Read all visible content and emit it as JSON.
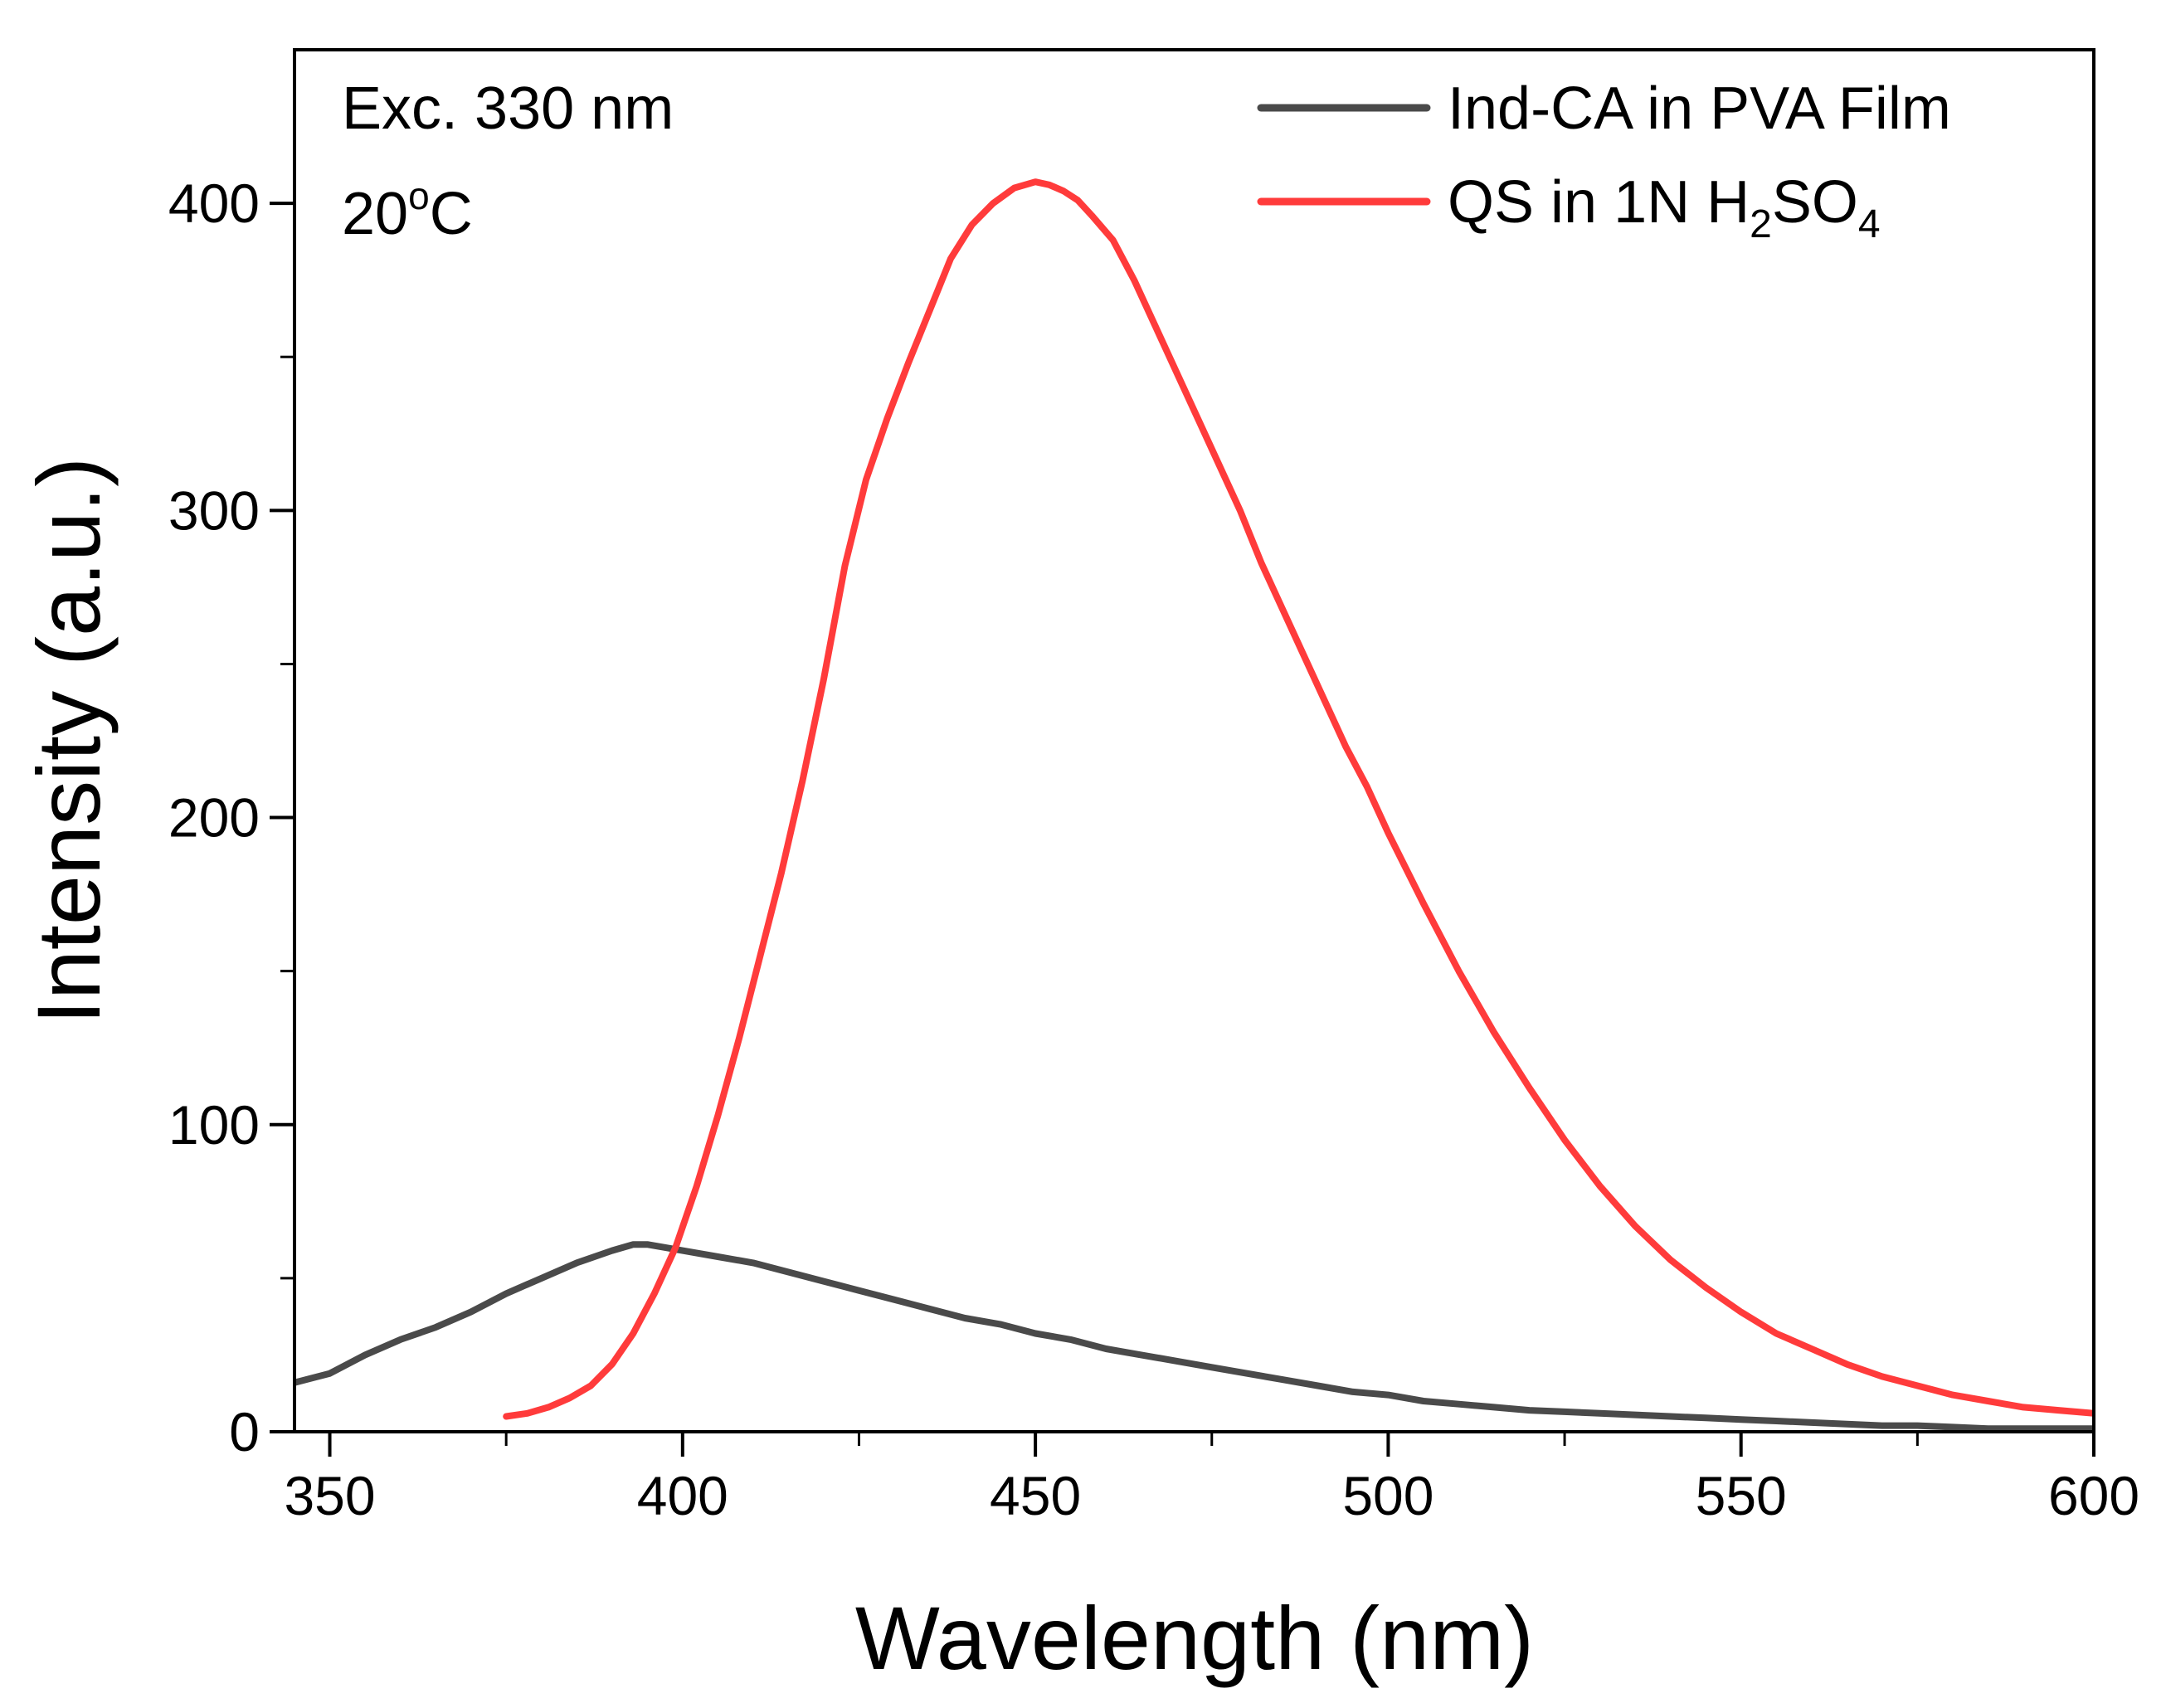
{
  "chart_data": {
    "type": "line",
    "title": "",
    "xlabel": "Wavelength (nm)",
    "ylabel": "Intensity (a.u.)",
    "xlim": [
      345,
      600
    ],
    "ylim": [
      0,
      450
    ],
    "grid": false,
    "legend_position": "top-right",
    "x_ticks": [
      350,
      400,
      450,
      500,
      550,
      600
    ],
    "x_tick_labels": [
      "350",
      "400",
      "450",
      "500",
      "550",
      "600"
    ],
    "x_minor_ticks": [
      375,
      425,
      475,
      525,
      575
    ],
    "y_ticks": [
      0,
      100,
      200,
      300,
      400
    ],
    "y_tick_labels": [
      "0",
      "100",
      "200",
      "300",
      "400"
    ],
    "y_minor_ticks": [
      50,
      150,
      250,
      350
    ],
    "annotations": [
      {
        "text": "Exc. 330 nm"
      },
      {
        "text": "20",
        "superscript": "o",
        "suffix": "C"
      }
    ],
    "series": [
      {
        "name": "Ind-CA in PVA Film",
        "color": "#4a4a4a",
        "x": [
          345,
          350,
          355,
          360,
          365,
          370,
          375,
          380,
          385,
          390,
          393,
          395,
          400,
          405,
          410,
          415,
          420,
          425,
          430,
          435,
          440,
          445,
          450,
          455,
          460,
          465,
          470,
          475,
          480,
          485,
          490,
          495,
          500,
          505,
          510,
          515,
          520,
          525,
          530,
          535,
          540,
          545,
          550,
          555,
          560,
          565,
          570,
          575,
          580,
          585,
          590,
          595,
          600
        ],
        "y": [
          16,
          19,
          25,
          30,
          34,
          39,
          45,
          50,
          55,
          59,
          61,
          61,
          59,
          57,
          55,
          52,
          49,
          46,
          43,
          40,
          37,
          35,
          32,
          30,
          27,
          25,
          23,
          21,
          19,
          17,
          15,
          13,
          12,
          10,
          9,
          8,
          7,
          6.5,
          6,
          5.5,
          5,
          4.5,
          4,
          3.5,
          3,
          2.5,
          2,
          2,
          1.5,
          1,
          1,
          1,
          1
        ]
      },
      {
        "name": "QS in 1N H2SO4",
        "color": "#ff3b3b",
        "x": [
          375,
          378,
          381,
          384,
          387,
          390,
          393,
          396,
          399,
          402,
          405,
          408,
          411,
          414,
          417,
          420,
          423,
          426,
          429,
          432,
          435,
          438,
          441,
          444,
          447,
          450,
          452,
          454,
          456,
          458,
          461,
          464,
          467,
          470,
          473,
          476,
          479,
          482,
          485,
          488,
          491,
          494,
          497,
          500,
          505,
          510,
          515,
          520,
          525,
          530,
          535,
          540,
          545,
          550,
          555,
          560,
          565,
          570,
          575,
          580,
          585,
          590,
          595,
          600
        ],
        "y": [
          5,
          6,
          8,
          11,
          15,
          22,
          32,
          45,
          60,
          80,
          103,
          128,
          155,
          182,
          212,
          245,
          282,
          310,
          330,
          348,
          365,
          382,
          393,
          400,
          405,
          407,
          406,
          404,
          401,
          396,
          388,
          375,
          360,
          345,
          330,
          315,
          300,
          283,
          268,
          253,
          238,
          223,
          210,
          195,
          172,
          150,
          130,
          112,
          95,
          80,
          67,
          56,
          47,
          39,
          32,
          27,
          22,
          18,
          15,
          12,
          10,
          8,
          7,
          6
        ]
      }
    ]
  },
  "legend": {
    "entry_1_label": "Ind-CA in PVA Film",
    "entry_2_prefix": "QS in 1N H",
    "entry_2_sub1": "2",
    "entry_2_mid": "SO",
    "entry_2_sub2": "4"
  },
  "annotations_text": {
    "excitation": "Exc. 330 nm",
    "temperature_value": "20",
    "temperature_degree": "o",
    "temperature_unit": "C"
  }
}
